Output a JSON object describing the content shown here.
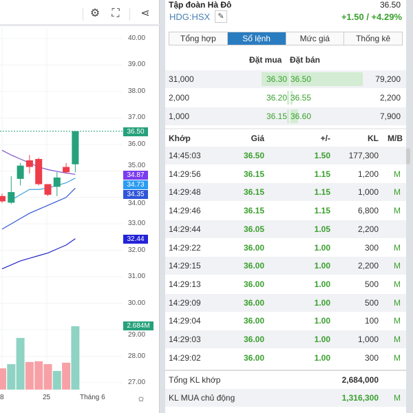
{
  "chart": {
    "toolbar": {
      "icons": [
        "gear-icon",
        "fullscreen-icon",
        "share-icon"
      ]
    },
    "price_axis": [
      "40.00",
      "39.00",
      "38.00",
      "37.00",
      "36.00",
      "35.00",
      "34.00",
      "33.00",
      "32.00",
      "31.00",
      "30.00",
      "29.00",
      "28.00",
      "27.00"
    ],
    "x_labels": [
      "8",
      "25",
      "Tháng 6"
    ],
    "tags": {
      "last_price": "36.50",
      "ma1": "34.87",
      "ma2": "34.73",
      "ma3": "34.35",
      "ma4": "32.44",
      "volume": "2.684M"
    },
    "colors": {
      "up": "#26a17b",
      "down": "#ef3c4a",
      "vol_up": "#8fd3c4",
      "vol_down": "#f7a1a7",
      "ma1": "#7a52c8",
      "ma2": "#3ea0e0",
      "ma3": "#2f56d8",
      "ma4": "#2323c8"
    },
    "chart_data": {
      "type": "candlestick",
      "ylim": [
        27,
        40
      ],
      "candles": [
        {
          "o": 34.05,
          "h": 34.15,
          "l": 33.8,
          "c": 33.85
        },
        {
          "o": 33.8,
          "h": 34.8,
          "l": 33.75,
          "c": 34.2
        },
        {
          "o": 34.7,
          "h": 35.3,
          "l": 34.45,
          "c": 35.2
        },
        {
          "o": 35.4,
          "h": 35.6,
          "l": 34.9,
          "c": 35.15
        },
        {
          "o": 35.45,
          "h": 35.5,
          "l": 34.45,
          "c": 34.5
        },
        {
          "o": 34.5,
          "h": 34.5,
          "l": 34.05,
          "c": 34.1
        },
        {
          "o": 34.4,
          "h": 34.95,
          "l": 34.05,
          "c": 34.75
        },
        {
          "o": 35.15,
          "h": 35.3,
          "l": 34.9,
          "c": 34.95
        },
        {
          "o": 35.25,
          "h": 36.5,
          "l": 34.95,
          "c": 36.5
        }
      ],
      "volume_millions": [
        0.9,
        1.08,
        2.19,
        1.17,
        1.2,
        1.08,
        0.79,
        1.14,
        2.684
      ],
      "ma_lines": [
        {
          "values": [
            35.78,
            35.6,
            35.45,
            35.3,
            35.15,
            35.05,
            34.98,
            34.92,
            34.87
          ]
        },
        {
          "values": [
            null,
            33.9,
            34.1,
            34.3,
            34.3,
            34.35,
            34.45,
            34.55,
            34.73
          ]
        },
        {
          "values": [
            32.8,
            33.0,
            33.2,
            33.4,
            33.55,
            33.7,
            33.85,
            34.0,
            34.35
          ]
        },
        {
          "values": [
            31.3,
            31.45,
            31.6,
            31.7,
            31.8,
            31.9,
            32.05,
            32.2,
            32.44
          ]
        }
      ]
    }
  },
  "panel": {
    "title": "Tập đoàn Hà Đô",
    "title_price": "36.50",
    "symbol": "HDG:HSX",
    "change": "+1.50 / +4.29%",
    "tabs": [
      "Tổng hợp",
      "Sổ lệnh",
      "Mức giá",
      "Thống kê"
    ],
    "active_tab": 1,
    "orderbook": {
      "bid_header": "Đặt mua",
      "ask_header": "Đặt bán",
      "rows": [
        {
          "bid_vol": "31,000",
          "bid": "36.30",
          "ask": "36.50",
          "ask_vol": "79,200",
          "bid_fill": 1.0,
          "ask_fill": 1.0
        },
        {
          "bid_vol": "2,000",
          "bid": "36.20",
          "ask": "36.55",
          "ask_vol": "2,200",
          "bid_fill": 0.06,
          "ask_fill": 0.03
        },
        {
          "bid_vol": "1,000",
          "bid": "36.15",
          "ask": "36.60",
          "ask_vol": "7,900",
          "bid_fill": 0.03,
          "ask_fill": 0.1
        }
      ]
    },
    "trades": {
      "headers": [
        "Khớp",
        "Giá",
        "+/-",
        "KL",
        "M/B"
      ],
      "rows": [
        [
          "14:45:03",
          "36.50",
          "1.50",
          "177,300",
          ""
        ],
        [
          "14:29:56",
          "36.15",
          "1.15",
          "1,200",
          "M"
        ],
        [
          "14:29:48",
          "36.15",
          "1.15",
          "1,000",
          "M"
        ],
        [
          "14:29:46",
          "36.15",
          "1.15",
          "6,800",
          "M"
        ],
        [
          "14:29:44",
          "36.05",
          "1.05",
          "2,200",
          ""
        ],
        [
          "14:29:22",
          "36.00",
          "1.00",
          "300",
          "M"
        ],
        [
          "14:29:15",
          "36.00",
          "1.00",
          "2,200",
          "M"
        ],
        [
          "14:29:13",
          "36.00",
          "1.00",
          "500",
          "M"
        ],
        [
          "14:29:09",
          "36.00",
          "1.00",
          "500",
          "M"
        ],
        [
          "14:29:04",
          "36.00",
          "1.00",
          "100",
          "M"
        ],
        [
          "14:29:03",
          "36.00",
          "1.00",
          "1,000",
          "M"
        ],
        [
          "14:29:02",
          "36.00",
          "1.00",
          "300",
          "M"
        ]
      ]
    },
    "summary": [
      {
        "label": "Tổng KL khớp",
        "value": "2,684,000",
        "tag": ""
      },
      {
        "label": "KL MUA chủ động",
        "value": "1,316,300",
        "tag": "M"
      }
    ]
  }
}
